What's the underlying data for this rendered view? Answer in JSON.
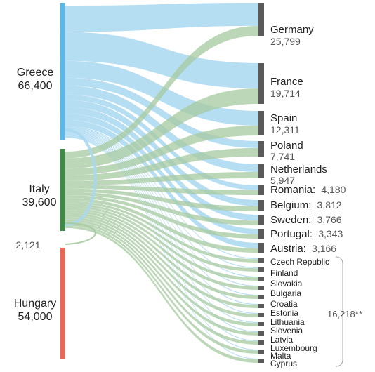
{
  "chart_data": {
    "type": "sankey",
    "sources": [
      {
        "key": "greece",
        "name": "Greece",
        "value_label": "66,400",
        "value": 66400,
        "color": "#5cb8e6",
        "flow_color": "#a9d8f1"
      },
      {
        "key": "italy",
        "name": "Italy",
        "value_label": "39,600",
        "value": 39600,
        "color": "#3f8a46",
        "flow_color": "#a6c9a0"
      },
      {
        "key": "hungary",
        "name": "Hungary",
        "value_label": "54,000",
        "value": 54000,
        "color": "#e8695a",
        "flow_color": "#e8695a"
      }
    ],
    "loop": {
      "label": "2,121",
      "value": 2121,
      "from": "italy",
      "to": "greece"
    },
    "destinations": [
      {
        "key": "germany",
        "name": "Germany",
        "value_label": "25,799",
        "value": 25799,
        "inline": false
      },
      {
        "key": "france",
        "name": "France",
        "value_label": "19,714",
        "value": 19714,
        "inline": false
      },
      {
        "key": "spain",
        "name": "Spain",
        "value_label": "12,311",
        "value": 12311,
        "inline": false
      },
      {
        "key": "poland",
        "name": "Poland",
        "value_label": "7,741",
        "value": 7741,
        "inline": false
      },
      {
        "key": "netherlands",
        "name": "Netherlands",
        "value_label": "5,947",
        "value": 5947,
        "inline": false
      },
      {
        "key": "romania",
        "name": "Romania:",
        "value_label": "4,180",
        "value": 4180,
        "inline": true
      },
      {
        "key": "belgium",
        "name": "Belgium:",
        "value_label": "3,812",
        "value": 3812,
        "inline": true
      },
      {
        "key": "sweden",
        "name": "Sweden:",
        "value_label": "3,766",
        "value": 3766,
        "inline": true
      },
      {
        "key": "portugal",
        "name": "Portugal:",
        "value_label": "3,343",
        "value": 3343,
        "inline": true
      },
      {
        "key": "austria",
        "name": "Austria:",
        "value_label": "3,166",
        "value": 3166,
        "inline": true
      }
    ],
    "others": {
      "total_label": "16,218**",
      "value": 16218,
      "countries": [
        "Czech Republic",
        "Finland",
        "Slovakia",
        "Bulgaria",
        "Croatia",
        "Estonia",
        "Lithuania",
        "Slovenia",
        "Latvia",
        "Luxembourg",
        "Malta",
        "Cyprus"
      ]
    },
    "colors": {
      "destination_bar": "#5a5a5a",
      "bracket": "#aaaaaa"
    }
  }
}
